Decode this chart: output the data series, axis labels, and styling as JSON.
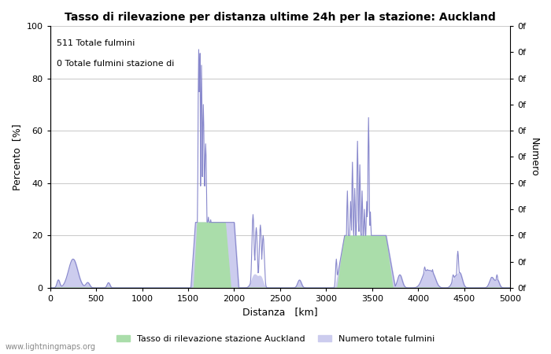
{
  "title": "Tasso di rilevazione per distanza ultime 24h per la stazione: Auckland",
  "xlabel": "Distanza   [km]",
  "ylabel_left": "Percento  [%]",
  "ylabel_right": "Numero",
  "annotation_line1": "511 Totale fulmini",
  "annotation_line2": "0 Totale fulmini stazione di",
  "watermark": "www.lightningmaps.org",
  "legend_green": "Tasso di rilevazione stazione Auckland",
  "legend_blue": "Numero totale fulmini",
  "xlim": [
    0,
    5000
  ],
  "ylim": [
    0,
    100
  ],
  "xticks": [
    0,
    500,
    1000,
    1500,
    2000,
    2500,
    3000,
    3500,
    4000,
    4500,
    5000
  ],
  "yticks_left": [
    0,
    20,
    40,
    60,
    80,
    100
  ],
  "right_ytick_labels": [
    "0f",
    "0f",
    "0f",
    "0f",
    "0f",
    "0f",
    "0f",
    "0f",
    "0f",
    "0f",
    "0f"
  ],
  "line_color": "#8888cc",
  "fill_green_color": "#aaddaa",
  "fill_blue_color": "#ccccee",
  "bg_color": "#ffffff",
  "grid_color": "#cccccc"
}
